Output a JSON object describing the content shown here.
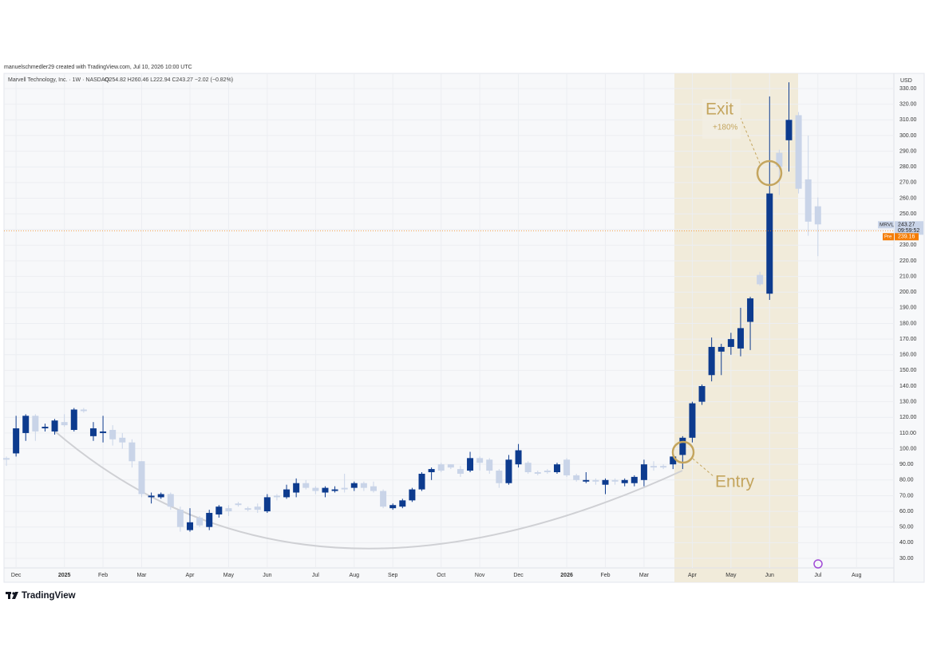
{
  "chart_data": {
    "type": "candlestick",
    "credit": "manuelschmedler29 created with TradingView.com, Jul 10, 2026 10:00 UTC",
    "title": "Marvell Technology, Inc. · 1W · NASDAQ",
    "ohlc_label": "O254.82  H260.46  L222.94  C243.27  −2.02 (−0.82%)",
    "currency": "USD",
    "brand": "TradingView",
    "up_color": "#0d3b8e",
    "down_color": "#c9d4e8",
    "grid": true,
    "open": [
      94,
      97,
      110,
      121,
      113,
      111,
      117,
      112,
      125,
      108,
      110,
      112,
      107,
      104,
      92,
      69,
      69,
      71,
      61,
      48,
      56,
      50,
      58,
      62,
      65,
      62,
      63,
      60,
      70,
      69,
      72,
      78,
      75,
      72,
      73,
      75,
      75,
      78,
      76,
      73,
      62,
      63,
      67,
      74,
      85,
      90,
      90,
      87,
      86,
      94,
      93,
      86,
      78,
      90,
      91,
      85,
      86,
      85,
      93,
      83,
      79,
      80,
      77,
      80,
      78,
      78,
      80,
      89,
      89,
      90,
      96,
      107,
      130,
      147,
      162,
      165,
      164,
      181,
      211,
      199,
      289,
      297,
      313,
      272,
      254.82
    ],
    "high": [
      95,
      121,
      122,
      122,
      116,
      119,
      122,
      126,
      126,
      117,
      121,
      115,
      110,
      106,
      92,
      72,
      72,
      72,
      63,
      62,
      57,
      61,
      64,
      64,
      66,
      63,
      65,
      71,
      71,
      77,
      81,
      80,
      76,
      76,
      76,
      84,
      79,
      79,
      79,
      74,
      65,
      68,
      75,
      85,
      88,
      91,
      90,
      89,
      98,
      95,
      94,
      87,
      96,
      103,
      92,
      86,
      87,
      91,
      94,
      84,
      85,
      81,
      81,
      81,
      81,
      83,
      93,
      92,
      90,
      98,
      108,
      130,
      141,
      171,
      167,
      174,
      190,
      197,
      213,
      325,
      291,
      334,
      315,
      300,
      260.46
    ],
    "low": [
      89,
      95,
      105,
      105,
      111,
      109,
      114,
      111,
      123,
      105,
      104,
      102,
      100,
      88,
      69,
      65,
      68,
      61,
      47,
      47,
      50,
      48,
      56,
      57,
      63,
      60,
      59,
      59,
      67,
      68,
      69,
      74,
      71,
      69,
      72,
      72,
      73,
      73,
      72,
      62,
      61,
      62,
      66,
      73,
      80,
      85,
      87,
      82,
      85,
      86,
      84,
      75,
      77,
      88,
      84,
      83,
      84,
      84,
      82,
      79,
      78,
      77,
      71,
      77,
      76,
      76,
      76,
      86,
      87,
      87,
      87,
      104,
      128,
      143,
      147,
      160,
      159,
      163,
      204,
      195,
      262,
      277,
      263,
      236,
      222.94
    ],
    "close": [
      93,
      113,
      121,
      111,
      114,
      118,
      115,
      125,
      124,
      113,
      111,
      106,
      104,
      92,
      71,
      70,
      71,
      63,
      50,
      53,
      51,
      59,
      63,
      60,
      64,
      61,
      61,
      69,
      69,
      74,
      78,
      75,
      73,
      75,
      74,
      74,
      78,
      75,
      73,
      63,
      64,
      67,
      74,
      84,
      87,
      86,
      88,
      84,
      94,
      91,
      86,
      78,
      93,
      99,
      85,
      84,
      85,
      90,
      83,
      80,
      80,
      79,
      80,
      79,
      80,
      82,
      90,
      88,
      88,
      95,
      107,
      129,
      140,
      165,
      165,
      170,
      177,
      196,
      205,
      263,
      280,
      310,
      266,
      245,
      243.27
    ],
    "xlim": [
      -0.25,
      91.7
    ],
    "xticks": [
      {
        "value": 1,
        "label": "Dec"
      },
      {
        "value": 6,
        "label": "2025"
      },
      {
        "value": 10,
        "label": "Feb"
      },
      {
        "value": 14,
        "label": "Mar"
      },
      {
        "value": 19,
        "label": "Apr"
      },
      {
        "value": 23,
        "label": "May"
      },
      {
        "value": 27,
        "label": "Jun"
      },
      {
        "value": 32,
        "label": "Jul"
      },
      {
        "value": 36,
        "label": "Aug"
      },
      {
        "value": 40,
        "label": "Sep"
      },
      {
        "value": 45,
        "label": "Oct"
      },
      {
        "value": 49,
        "label": "Nov"
      },
      {
        "value": 53,
        "label": "Dec"
      },
      {
        "value": 58,
        "label": "2026"
      },
      {
        "value": 62,
        "label": "Feb"
      },
      {
        "value": 66,
        "label": "Mar"
      },
      {
        "value": 71,
        "label": "Apr"
      },
      {
        "value": 75,
        "label": "May"
      },
      {
        "value": 79,
        "label": "Jun"
      },
      {
        "value": 84,
        "label": "Jul"
      },
      {
        "value": 88,
        "label": "Aug"
      }
    ],
    "ylim": [
      14.7,
      339.7
    ],
    "yticks": [
      {
        "value": 30,
        "label": "30.00"
      },
      {
        "value": 40,
        "label": "40.00"
      },
      {
        "value": 50,
        "label": "50.00"
      },
      {
        "value": 60,
        "label": "60.00"
      },
      {
        "value": 70,
        "label": "70.00"
      },
      {
        "value": 80,
        "label": "80.00"
      },
      {
        "value": 90,
        "label": "90.00"
      },
      {
        "value": 100,
        "label": "100.00"
      },
      {
        "value": 110,
        "label": "110.00"
      },
      {
        "value": 120,
        "label": "120.00"
      },
      {
        "value": 130,
        "label": "130.00"
      },
      {
        "value": 140,
        "label": "140.00"
      },
      {
        "value": 150,
        "label": "150.00"
      },
      {
        "value": 160,
        "label": "160.00"
      },
      {
        "value": 170,
        "label": "170.00"
      },
      {
        "value": 180,
        "label": "180.00"
      },
      {
        "value": 190,
        "label": "190.00"
      },
      {
        "value": 200,
        "label": "200.00"
      },
      {
        "value": 210,
        "label": "210.00"
      },
      {
        "value": 220,
        "label": "220.00"
      },
      {
        "value": 230,
        "label": "230.00"
      },
      {
        "value": 240,
        "label": "240.00"
      },
      {
        "value": 250,
        "label": "250.00"
      },
      {
        "value": 260,
        "label": "260.00"
      },
      {
        "value": 270,
        "label": "270.00"
      },
      {
        "value": 280,
        "label": "280.00"
      },
      {
        "value": 290,
        "label": "290.00"
      },
      {
        "value": 300,
        "label": "300.00"
      },
      {
        "value": 310,
        "label": "310.00"
      },
      {
        "value": 320,
        "label": "320.00"
      },
      {
        "value": 330,
        "label": "330.00"
      }
    ],
    "last_price": {
      "symbol": "MRVL",
      "value": 243.27,
      "label": "243.27",
      "countdown": "09:59:52"
    },
    "premarket": {
      "name": "Pre",
      "value": 239.16,
      "label": "239.16",
      "color": "#f57c00"
    },
    "annotations": {
      "exit": "Exit",
      "gain": "+180%",
      "entry": "Entry"
    }
  }
}
